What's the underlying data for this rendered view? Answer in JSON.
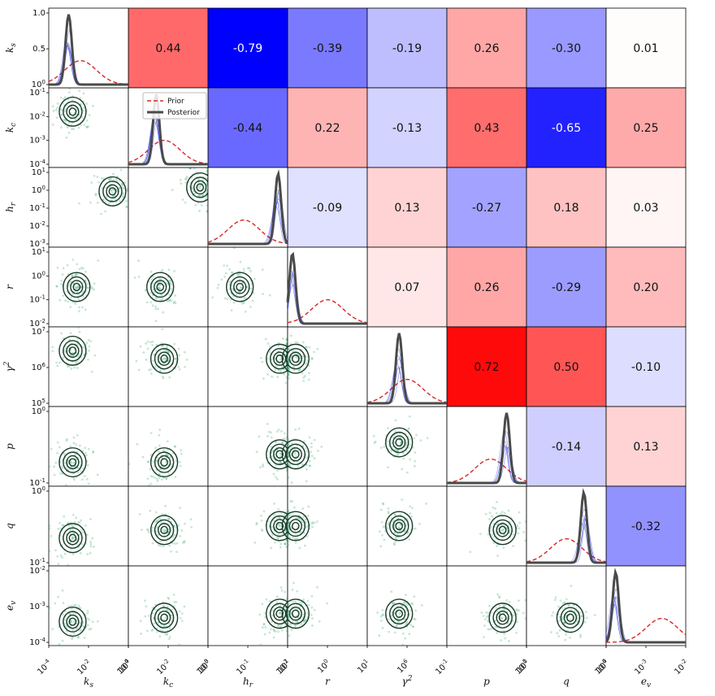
{
  "chart_data": {
    "type": "corner-matrix",
    "variables": [
      {
        "label": "k_s",
        "sub": "s",
        "sup": "",
        "base": "k",
        "yticks": [
          "1.0",
          "0.5",
          "10^0"
        ],
        "log": false
      },
      {
        "label": "k_c",
        "sub": "c",
        "sup": "",
        "base": "k",
        "yticks": [
          "10^-1",
          "10^-2",
          "10^-3",
          "10^-4"
        ],
        "log": true
      },
      {
        "label": "h_r",
        "sub": "r",
        "sup": "",
        "base": "h",
        "yticks": [
          "10^1",
          "10^0",
          "10^-1",
          "10^-2",
          "10^-3"
        ],
        "log": true
      },
      {
        "label": "r",
        "sub": "",
        "sup": "",
        "base": "r",
        "yticks": [
          "10^1",
          "10^0",
          "10^-1",
          "10^-2"
        ],
        "log": true
      },
      {
        "label": "γ^2",
        "sub": "",
        "sup": "2",
        "base": "γ",
        "yticks": [
          "10^7",
          "10^6",
          "10^5"
        ],
        "log": true
      },
      {
        "label": "p",
        "sub": "",
        "sup": "",
        "base": "p",
        "yticks": [
          "10^0",
          "10^-1"
        ],
        "log": true
      },
      {
        "label": "q",
        "sub": "",
        "sup": "",
        "base": "q",
        "yticks": [
          "10^0",
          "10^-1"
        ],
        "log": true
      },
      {
        "label": "e_v",
        "sub": "v",
        "sup": "",
        "base": "e",
        "yticks": [
          "10^-2",
          "10^-3",
          "10^-4"
        ],
        "log": true
      }
    ],
    "xticks": [
      [
        "10^-4",
        "10^-2",
        "10^0"
      ],
      [
        "10^-4",
        "10^-2",
        "10^0"
      ],
      [
        "10^-3",
        "10^-1",
        "10^1"
      ],
      [
        "10^-2",
        "10^0",
        "10^1"
      ],
      [
        "10^6"
      ],
      [
        "10^-1",
        "10^0"
      ],
      [
        "10^-1",
        "10^0"
      ],
      [
        "10^-4",
        "10^-3",
        "10^-2"
      ]
    ],
    "correlations": [
      {
        "row": 0,
        "col": 1,
        "value": 0.44
      },
      {
        "row": 0,
        "col": 2,
        "value": -0.79
      },
      {
        "row": 0,
        "col": 3,
        "value": -0.39
      },
      {
        "row": 0,
        "col": 4,
        "value": -0.19
      },
      {
        "row": 0,
        "col": 5,
        "value": 0.26
      },
      {
        "row": 0,
        "col": 6,
        "value": -0.3
      },
      {
        "row": 0,
        "col": 7,
        "value": 0.01
      },
      {
        "row": 1,
        "col": 2,
        "value": -0.44
      },
      {
        "row": 1,
        "col": 3,
        "value": 0.22
      },
      {
        "row": 1,
        "col": 4,
        "value": -0.13
      },
      {
        "row": 1,
        "col": 5,
        "value": 0.43
      },
      {
        "row": 1,
        "col": 6,
        "value": -0.65
      },
      {
        "row": 1,
        "col": 7,
        "value": 0.25
      },
      {
        "row": 2,
        "col": 3,
        "value": -0.09
      },
      {
        "row": 2,
        "col": 4,
        "value": 0.13
      },
      {
        "row": 2,
        "col": 5,
        "value": -0.27
      },
      {
        "row": 2,
        "col": 6,
        "value": 0.18
      },
      {
        "row": 2,
        "col": 7,
        "value": 0.03
      },
      {
        "row": 3,
        "col": 4,
        "value": 0.07
      },
      {
        "row": 3,
        "col": 5,
        "value": 0.26
      },
      {
        "row": 3,
        "col": 6,
        "value": -0.29
      },
      {
        "row": 3,
        "col": 7,
        "value": 0.2
      },
      {
        "row": 4,
        "col": 5,
        "value": 0.72
      },
      {
        "row": 4,
        "col": 6,
        "value": 0.5
      },
      {
        "row": 4,
        "col": 7,
        "value": -0.1
      },
      {
        "row": 5,
        "col": 6,
        "value": -0.14
      },
      {
        "row": 5,
        "col": 7,
        "value": 0.13
      },
      {
        "row": 6,
        "col": 7,
        "value": -0.32
      }
    ],
    "diagonal_peaks": [
      0.25,
      0.35,
      0.88,
      0.06,
      0.4,
      0.75,
      0.72,
      0.12
    ],
    "prior_peaks": [
      0.4,
      0.45,
      0.45,
      0.5,
      0.5,
      0.55,
      0.5,
      0.7
    ],
    "legend": {
      "prior": "Prior",
      "posterior": "Posterior",
      "placement": "top-left of k_c marginal"
    },
    "scatter_centers": [
      [
        0.3,
        0.25
      ],
      [
        0.3,
        0.3,
        0.45,
        0.2
      ],
      [
        0.8,
        0.3,
        0.9,
        0.25
      ],
      [
        0.35,
        0.5,
        0.4,
        0.5,
        0.4,
        0.5
      ],
      [
        0.3,
        0.3,
        0.45,
        0.4,
        0.9,
        0.4,
        0.1,
        0.4,
        0.4,
        0.5
      ],
      [
        0.3,
        0.7,
        0.45,
        0.7,
        0.9,
        0.6,
        0.1,
        0.6,
        0.4,
        0.45,
        0.7,
        0.45
      ],
      [
        0.3,
        0.65,
        0.45,
        0.55,
        0.9,
        0.5,
        0.1,
        0.5,
        0.4,
        0.5,
        0.7,
        0.55,
        0.55,
        0.6
      ],
      [
        0.3,
        0.7,
        0.45,
        0.65,
        0.9,
        0.6,
        0.1,
        0.6,
        0.4,
        0.6,
        0.7,
        0.65,
        0.55,
        0.65,
        0.6,
        0.7
      ]
    ],
    "colors": {
      "positive": "#ff0000",
      "negative": "#0000ff",
      "scatter": "#1a9e5c",
      "contour": "#1b3a2b",
      "posterior": "#4a4a4a",
      "prior": "#d62728",
      "samples": "#2233dd"
    }
  }
}
